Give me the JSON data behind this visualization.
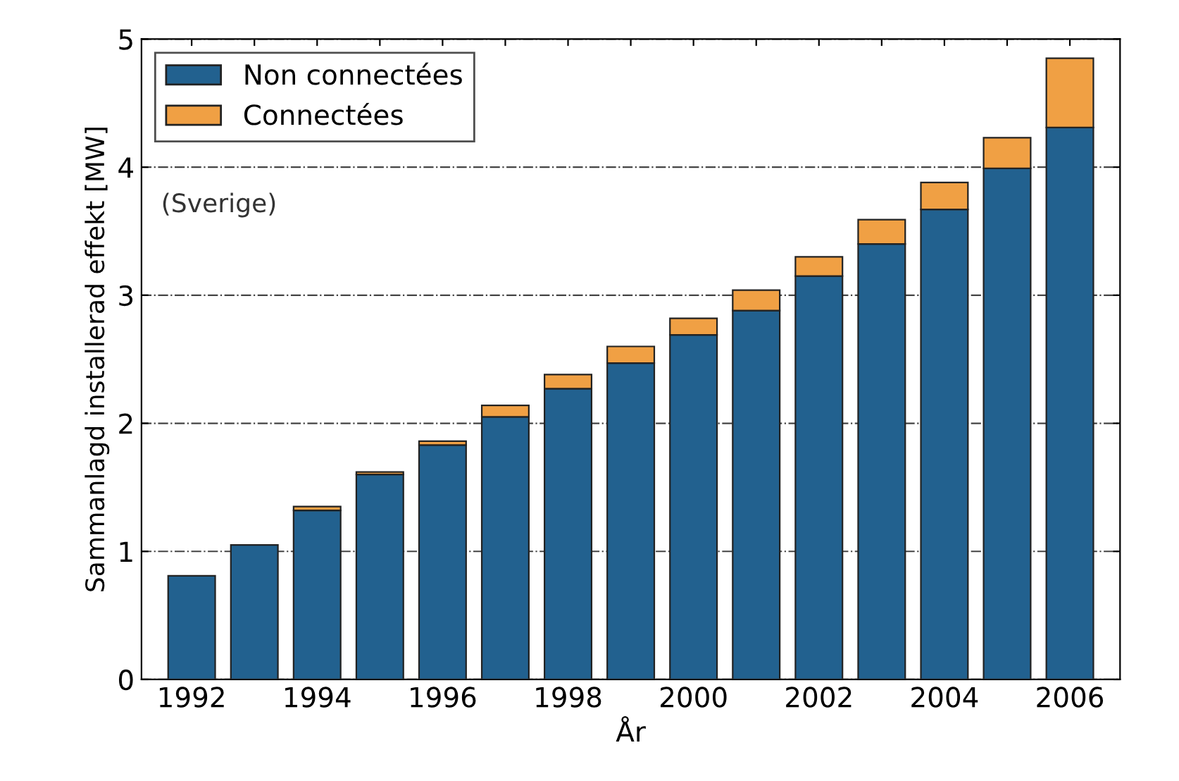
{
  "chart_data": {
    "type": "bar",
    "stacked": true,
    "categories": [
      "1992",
      null,
      "1994",
      null,
      "1996",
      null,
      "1998",
      null,
      "2000",
      null,
      "2002",
      null,
      "2004",
      null,
      "2006"
    ],
    "series": [
      {
        "name": "Non connectées",
        "color": "#22618f",
        "values": [
          0.81,
          1.05,
          1.32,
          1.6,
          1.83,
          2.05,
          2.27,
          2.47,
          2.69,
          2.88,
          3.15,
          3.4,
          3.67,
          3.99,
          4.31
        ]
      },
      {
        "name": "Connectées",
        "color": "#f0a044",
        "values": [
          null,
          null,
          0.03,
          0.02,
          0.03,
          0.09,
          0.11,
          0.13,
          0.13,
          0.16,
          0.15,
          0.19,
          0.21,
          0.24,
          0.54
        ]
      }
    ],
    "xlabel": "År",
    "ylabel": "Sammanlagd installerad effekt [MW]",
    "ylim": [
      0,
      5
    ],
    "yticks": [
      0,
      1,
      2,
      3,
      4,
      5
    ],
    "grid": "y",
    "legend": "top left",
    "annotations": [
      "(Sverige)"
    ]
  }
}
